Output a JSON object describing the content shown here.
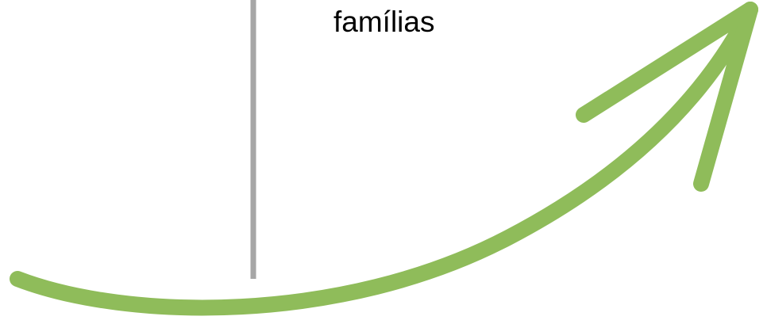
{
  "label": {
    "text": "famílias"
  },
  "colors": {
    "arrow": "#8fbc5a",
    "divider": "#a6a6a6",
    "text": "#000000",
    "background": "#ffffff"
  },
  "icons": {
    "arrow": "curved-arrow-icon",
    "divider": "vertical-divider"
  }
}
